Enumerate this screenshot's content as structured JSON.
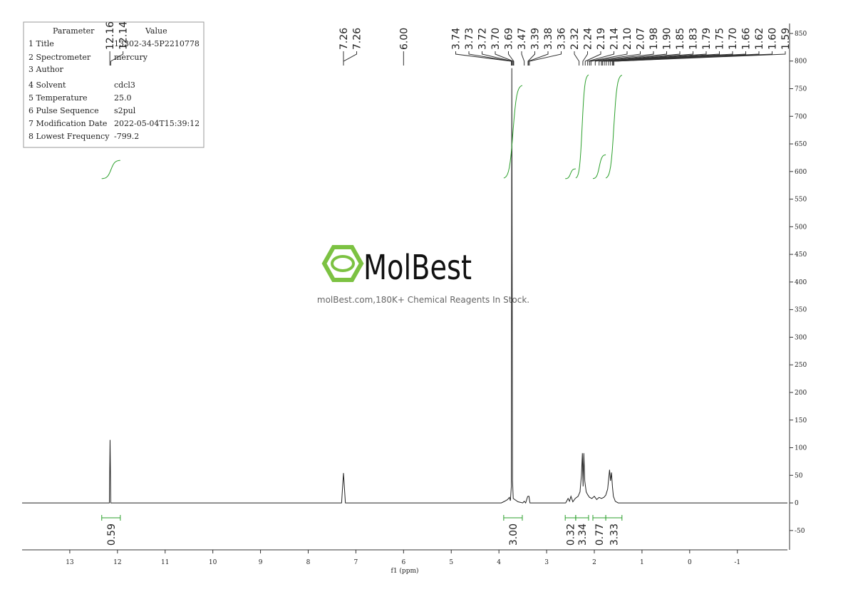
{
  "parameter_table": {
    "header": [
      "Parameter",
      "Value"
    ],
    "rows": [
      [
        "1 Title",
        "13302-34-5P2210778"
      ],
      [
        "2 Spectrometer",
        "mercury"
      ],
      [
        "3 Author"
      ],
      [
        "4 Solvent",
        "cdcl3"
      ],
      [
        "5 Temperature",
        "25.0"
      ],
      [
        "6 Pulse Sequence",
        "s2pul"
      ],
      [
        "7 Modification Date",
        "2022-05-04T15:39:12"
      ],
      [
        "8 Lowest Frequency",
        "-799.2"
      ]
    ]
  },
  "watermark": {
    "brand": "MolBest",
    "tagline": "molBest.com,180K+ Chemical Reagents In Stock."
  },
  "chart_data": {
    "type": "line",
    "x_label": "f1 (ppm)",
    "xlim": [
      14,
      -2.05
    ],
    "xticks": [
      13,
      12,
      11,
      10,
      9,
      8,
      7,
      6,
      5,
      4,
      3,
      2,
      1,
      0,
      -1
    ],
    "ylim": [
      -85,
      868
    ],
    "yticks": [
      -50,
      0,
      50,
      100,
      150,
      200,
      250,
      300,
      350,
      400,
      450,
      500,
      550,
      600,
      650,
      700,
      750,
      800,
      850
    ],
    "series": [
      {
        "color": "#222222",
        "x": [
          14,
          12.25,
          12.17,
          12.155,
          12.14,
          12.1,
          7.3,
          7.26,
          7.22,
          3.95,
          3.88,
          3.82,
          3.78,
          3.76,
          3.74,
          3.73,
          3.715,
          3.7,
          3.6,
          3.5,
          3.47,
          3.44,
          3.4,
          3.39,
          3.37,
          3.35,
          2.6,
          2.55,
          2.52,
          2.49,
          2.45,
          2.4,
          2.34,
          2.3,
          2.27,
          2.25,
          2.235,
          2.22,
          2.2,
          2.17,
          2.14,
          2.1,
          2.05,
          2.0,
          1.95,
          1.9,
          1.85,
          1.8,
          1.76,
          1.72,
          1.68,
          1.66,
          1.64,
          1.62,
          1.6,
          1.56,
          1.5,
          -2.05
        ],
        "values": [
          0,
          0,
          0,
          114,
          0,
          0,
          0,
          54,
          0,
          0,
          3,
          6,
          10,
          4,
          30,
          787,
          40,
          8,
          2,
          0,
          3,
          0,
          11,
          12,
          12,
          0,
          0,
          8,
          3,
          12,
          2,
          8,
          12,
          20,
          50,
          90,
          30,
          90,
          40,
          20,
          15,
          10,
          8,
          12,
          6,
          10,
          8,
          10,
          14,
          25,
          60,
          40,
          55,
          30,
          12,
          3,
          0,
          0
        ]
      }
    ],
    "peaks": {
      "values": [
        12.16,
        12.14,
        7.26,
        7.26,
        6.0,
        3.74,
        3.73,
        3.72,
        3.7,
        3.69,
        3.47,
        3.39,
        3.38,
        3.36,
        2.32,
        2.24,
        2.19,
        2.14,
        2.1,
        2.07,
        1.98,
        1.9,
        1.85,
        1.83,
        1.79,
        1.75,
        1.7,
        1.66,
        1.62,
        1.6,
        1.59
      ],
      "value_labels": [
        "12.16",
        "12.14",
        "7.26",
        "7.26",
        "6.00",
        "3.74",
        "3.73",
        "3.72",
        "3.70",
        "3.69",
        "3.47",
        "3.39",
        "3.38",
        "3.36",
        "2.32",
        "2.24",
        "2.19",
        "2.14",
        "2.10",
        "2.07",
        "1.98",
        "1.90",
        "1.85",
        "1.83",
        "1.79",
        "1.75",
        "1.70",
        "1.66",
        "1.62",
        "1.60",
        "1.59"
      ]
    },
    "integrals": {
      "color": "#2ca02c",
      "ranges": [
        [
          12.33,
          11.94
        ],
        [
          3.9,
          3.51
        ],
        [
          2.61,
          2.39
        ],
        [
          2.39,
          2.12
        ],
        [
          2.03,
          1.76
        ],
        [
          1.76,
          1.42
        ]
      ],
      "values": [
        0.59,
        3,
        0.32,
        3.34,
        0.77,
        3.33
      ],
      "value_labels": [
        "0.59",
        "3.00",
        "0.32",
        "3.34",
        "0.77",
        "3.33"
      ]
    }
  }
}
